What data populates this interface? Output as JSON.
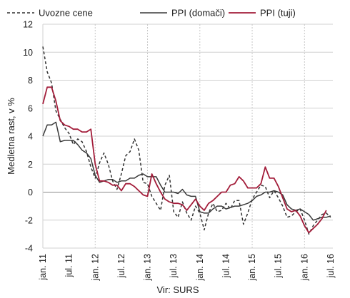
{
  "chart_data": {
    "type": "line",
    "ylabel": "Medletna rast, v %",
    "xlabel": "Vir: SURS",
    "ylim": [
      -4,
      12
    ],
    "yticks": [
      "-4",
      "-2",
      "0",
      "2",
      "4",
      "6",
      "8",
      "10",
      "12"
    ],
    "ytick_values": [
      -4,
      -2,
      0,
      2,
      4,
      6,
      8,
      10,
      12
    ],
    "grid": true,
    "legend_position": "top",
    "x_labels": [
      {
        "index": 0,
        "label": "jan. 11"
      },
      {
        "index": 6,
        "label": "jul. 11"
      },
      {
        "index": 12,
        "label": "jan. 12"
      },
      {
        "index": 18,
        "label": "jul. 12"
      },
      {
        "index": 24,
        "label": "jan. 13"
      },
      {
        "index": 30,
        "label": "jul. 13"
      },
      {
        "index": 36,
        "label": "jan. 14"
      },
      {
        "index": 42,
        "label": "jul. 14"
      },
      {
        "index": 48,
        "label": "jan. 15"
      },
      {
        "index": 54,
        "label": "jul. 15"
      },
      {
        "index": 60,
        "label": "jan. 16"
      },
      {
        "index": 66,
        "label": "jul. 16"
      }
    ],
    "series": [
      {
        "name": "Uvozne cene",
        "color": "#333333",
        "style": "dashed",
        "values": [
          10.4,
          8.6,
          7.8,
          5.8,
          5.2,
          4.6,
          4.2,
          3.4,
          3.8,
          3.6,
          2.9,
          1.8,
          1.0,
          2.1,
          2.8,
          2.0,
          0.8,
          0.2,
          1.3,
          2.6,
          2.9,
          3.8,
          3.0,
          0.7,
          0.6,
          -0.3,
          -0.8,
          -1.3,
          0.5,
          1.2,
          -1.4,
          -1.8,
          -0.7,
          -1.5,
          -2.0,
          -1.0,
          -1.5,
          -2.7,
          -1.5,
          -0.8,
          -1.4,
          -1.3,
          -0.8,
          -1.2,
          -0.6,
          -0.6,
          -2.3,
          -1.5,
          -0.5,
          0.0,
          0.5,
          0.4,
          -0.4,
          0.1,
          -0.4,
          -1.0,
          -1.8,
          -1.7,
          -1.4,
          -1.2,
          -2.0,
          -3.0,
          -2.4,
          -2.0,
          -1.6,
          -1.5,
          -1.8
        ]
      },
      {
        "name": "PPI (domači)",
        "color": "#3a3a3a",
        "style": "solid",
        "values": [
          4.0,
          4.8,
          4.8,
          5.0,
          3.6,
          3.7,
          3.7,
          3.7,
          3.4,
          3.0,
          2.8,
          2.4,
          1.2,
          0.7,
          0.8,
          0.9,
          0.9,
          0.7,
          0.8,
          0.8,
          1.0,
          1.0,
          1.2,
          1.3,
          1.1,
          1.1,
          1.1,
          0.5,
          0.0,
          0.0,
          0.0,
          -0.1,
          0.2,
          -0.2,
          -0.3,
          -0.3,
          -1.4,
          -1.5,
          -1.5,
          -1.2,
          -1.0,
          -1.0,
          -1.2,
          -1.1,
          -1.0,
          -1.0,
          -0.9,
          -0.8,
          -0.6,
          -0.3,
          -0.2,
          0.0,
          0.0,
          0.1,
          0.0,
          -0.2,
          -0.9,
          -1.2,
          -1.3,
          -1.2,
          -1.4,
          -1.6,
          -2.0,
          -1.9,
          -1.8,
          -1.8,
          -1.7
        ]
      },
      {
        "name": "PPI (tuji)",
        "color": "#a31d3a",
        "style": "solid",
        "values": [
          6.3,
          7.5,
          7.5,
          6.5,
          5.1,
          4.8,
          4.7,
          4.5,
          4.5,
          4.3,
          4.3,
          4.5,
          2.0,
          0.8,
          0.8,
          0.7,
          0.5,
          0.5,
          0.1,
          0.6,
          0.6,
          0.4,
          0.1,
          -0.2,
          -0.3,
          1.3,
          0.6,
          0.0,
          -0.5,
          -0.7,
          -0.8,
          -0.8,
          -0.9,
          -1.3,
          -0.9,
          -0.5,
          -1.0,
          -1.3,
          -0.8,
          -0.6,
          -0.3,
          0.0,
          0.0,
          0.5,
          0.6,
          1.1,
          0.8,
          0.3,
          0.3,
          0.3,
          0.6,
          1.8,
          1.0,
          1.0,
          0.4,
          -0.4,
          -1.2,
          -1.4,
          -1.3,
          -1.7,
          -2.4,
          -2.9,
          -2.6,
          -2.3,
          -1.9,
          -1.3
        ]
      }
    ]
  }
}
